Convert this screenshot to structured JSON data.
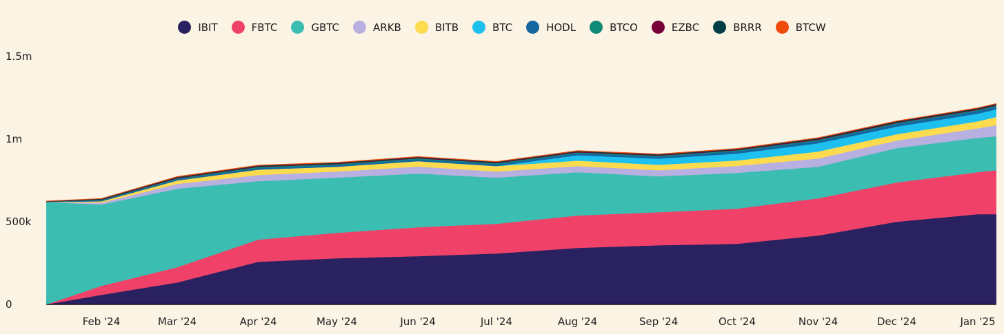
{
  "chart_data": {
    "type": "area",
    "stacked": true,
    "title": "",
    "xlabel": "",
    "ylabel": "",
    "ylim": [
      0,
      1500000
    ],
    "grid": false,
    "legend_position": "top",
    "x_tick_labels": [
      "Feb '24",
      "Mar '24",
      "Apr '24",
      "May '24",
      "Jun '24",
      "Jul '24",
      "Aug '24",
      "Sep '24",
      "Oct '24",
      "Nov '24",
      "Dec '24",
      "Jan '25"
    ],
    "x_tick_dates": [
      "2024-02-01",
      "2024-03-01",
      "2024-04-01",
      "2024-05-01",
      "2024-06-01",
      "2024-07-01",
      "2024-08-01",
      "2024-09-01",
      "2024-10-01",
      "2024-11-01",
      "2024-12-01",
      "2025-01-01"
    ],
    "y_tick_labels": [
      "0",
      "500k",
      "1m",
      "1.5m"
    ],
    "y_tick_values": [
      0,
      500000,
      1000000,
      1500000
    ],
    "x": [
      "2024-01-11",
      "2024-02-01",
      "2024-03-01",
      "2024-04-01",
      "2024-05-01",
      "2024-06-01",
      "2024-07-01",
      "2024-08-01",
      "2024-09-01",
      "2024-10-01",
      "2024-11-01",
      "2024-12-01",
      "2025-01-01",
      "2025-01-08"
    ],
    "series": [
      {
        "name": "IBIT",
        "color": "#2A2160",
        "values": [
          0,
          58000,
          133000,
          258000,
          279000,
          292000,
          308000,
          342000,
          358000,
          367000,
          417000,
          500000,
          546000,
          546000
        ]
      },
      {
        "name": "FBTC",
        "color": "#F04268",
        "values": [
          0,
          54000,
          92000,
          134000,
          154000,
          175000,
          180000,
          196000,
          200000,
          212000,
          225000,
          238000,
          254000,
          266000
        ]
      },
      {
        "name": "GBTC",
        "color": "#3BBDB2",
        "values": [
          619000,
          492000,
          475000,
          354000,
          334000,
          325000,
          279000,
          262000,
          217000,
          217000,
          191000,
          208000,
          208000,
          205000
        ]
      },
      {
        "name": "ARKB",
        "color": "#B8B0E0",
        "values": [
          0,
          12000,
          29000,
          37000,
          37000,
          42000,
          37000,
          37000,
          37000,
          42000,
          50000,
          46000,
          58000,
          67000
        ]
      },
      {
        "name": "BITB",
        "color": "#FDDB4E",
        "values": [
          0,
          8000,
          21000,
          33000,
          29000,
          33000,
          33000,
          33000,
          33000,
          33000,
          42000,
          38000,
          42000,
          50000
        ]
      },
      {
        "name": "BTC",
        "color": "#1EC0F0",
        "values": [
          0,
          0,
          0,
          0,
          0,
          0,
          0,
          33000,
          37000,
          42000,
          50000,
          46000,
          46000,
          46000
        ]
      },
      {
        "name": "HODL",
        "color": "#1467A0",
        "values": [
          1000,
          5000,
          8000,
          10000,
          10000,
          11000,
          11000,
          11000,
          12000,
          14000,
          15000,
          16000,
          17000,
          17000
        ]
      },
      {
        "name": "BTCO",
        "color": "#0E8A78",
        "values": [
          2000,
          4000,
          5000,
          6000,
          6000,
          6000,
          6000,
          6000,
          6000,
          6000,
          6000,
          6000,
          6000,
          6000
        ]
      },
      {
        "name": "EZBC",
        "color": "#780038",
        "values": [
          1000,
          3000,
          4000,
          4000,
          4000,
          4000,
          4000,
          4000,
          4000,
          4000,
          5000,
          5000,
          5000,
          5000
        ]
      },
      {
        "name": "BRRR",
        "color": "#003F45",
        "values": [
          1000,
          3000,
          4000,
          4000,
          4000,
          4000,
          4000,
          4000,
          4000,
          4000,
          5000,
          5000,
          5000,
          5000
        ]
      },
      {
        "name": "BTCW",
        "color": "#F04A0A",
        "values": [
          2000,
          2000,
          3000,
          3000,
          3000,
          3000,
          3000,
          3000,
          3000,
          3000,
          3000,
          3000,
          3000,
          3000
        ]
      }
    ]
  }
}
